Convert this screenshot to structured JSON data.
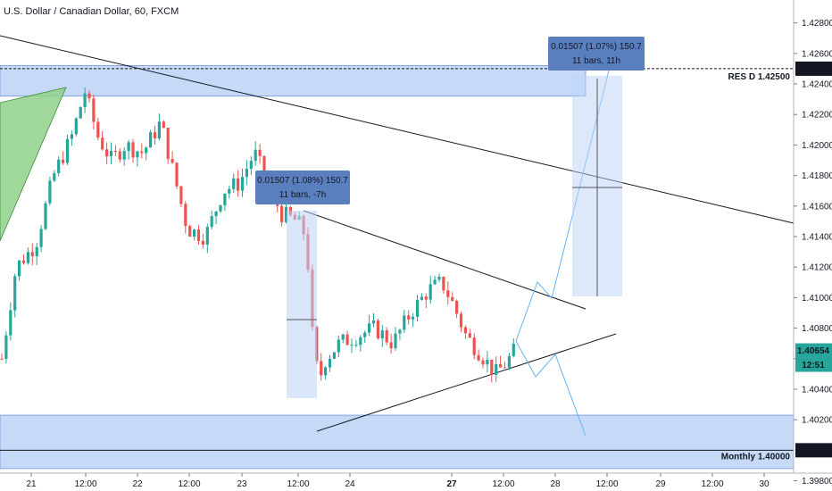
{
  "header": {
    "title": "U.S. Dollar / Canadian Dollar, 60, FXCM"
  },
  "colors": {
    "up": "#26a69a",
    "down": "#ef5350",
    "zone": "#bcd3f7",
    "zone_stroke": "#2962ff",
    "measure": "#5a7fbf",
    "last": "#26a69a",
    "proj": "#64b5f6"
  },
  "chart_data": {
    "type": "candlestick",
    "symbol": "U.S. Dollar / Canadian Dollar",
    "interval": "60",
    "source": "FXCM",
    "ylim": [
      1.3985,
      1.4295
    ],
    "y_ticks": [
      "1.42800",
      "1.42600",
      "1.42400",
      "1.42200",
      "1.42000",
      "1.41800",
      "1.41600",
      "1.41400",
      "1.41200",
      "1.41000",
      "1.40800",
      "1.40600",
      "1.40400",
      "1.40200",
      "1.39800"
    ],
    "x_ticks": [
      "21",
      "12:00",
      "22",
      "12:00",
      "23",
      "12:00",
      "24",
      "27",
      "12:00",
      "28",
      "12:00",
      "29",
      "12:00",
      "30"
    ],
    "price_labels": {
      "res": "1.42500",
      "last": "1.40654",
      "countdown": "12:51",
      "support": "1.40000"
    },
    "zones": [
      {
        "label": "RES D 1.42500",
        "level": 1.425,
        "from": 1.4232,
        "to": 1.4252
      },
      {
        "label": "Monthly 1.40000",
        "level": 1.4,
        "from": 1.3988,
        "to": 1.4023
      }
    ],
    "measures": [
      {
        "line1": "0.01507 (1.08%) 150.7",
        "line2": "11 bars, -7h"
      },
      {
        "line1": "0.01507 (1.07%) 150.7",
        "line2": "11 bars, 11h"
      }
    ]
  }
}
